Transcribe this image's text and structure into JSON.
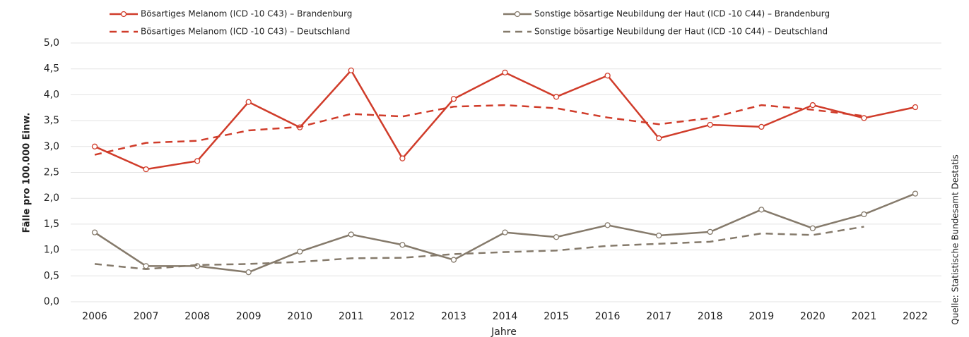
{
  "chart_data": {
    "type": "line",
    "y_label": "Fälle pro 100.000 Einw.",
    "x_label": "Jahre",
    "source": "Quelle: Statistische Bundesamt Destatis",
    "categories": [
      "2006",
      "2007",
      "2008",
      "2009",
      "2010",
      "2011",
      "2012",
      "2013",
      "2014",
      "2015",
      "2016",
      "2017",
      "2018",
      "2019",
      "2020",
      "2021",
      "2022"
    ],
    "series": [
      {
        "name": "Bösartiges Melanom (ICD  -10 C43)  – Brandenburg",
        "color": "#d03c2a",
        "line_style": "solid",
        "markers": true,
        "values": [
          3.0,
          2.56,
          2.72,
          3.86,
          3.37,
          4.47,
          2.77,
          3.92,
          4.43,
          3.96,
          4.37,
          3.16,
          3.42,
          3.38,
          3.8,
          3.55,
          3.76
        ]
      },
      {
        "name": "Bösartiges Melanom (ICD  -10 C43)  – Deutschland",
        "color": "#d03c2a",
        "line_style": "dashed",
        "markers": false,
        "values": [
          2.84,
          3.07,
          3.11,
          3.31,
          3.38,
          3.63,
          3.58,
          3.77,
          3.8,
          3.74,
          3.56,
          3.43,
          3.55,
          3.8,
          3.71,
          3.59,
          null
        ]
      },
      {
        "name": "Sonstige bösartige Neubildung der Haut (ICD  -10 C44)  – Brandenburg",
        "color": "#857a6b",
        "line_style": "solid",
        "markers": true,
        "values": [
          1.34,
          0.69,
          0.69,
          0.57,
          0.97,
          1.3,
          1.1,
          0.81,
          1.34,
          1.25,
          1.48,
          1.28,
          1.35,
          1.78,
          1.42,
          1.69,
          2.09
        ]
      },
      {
        "name": "Sonstige bösartige Neubildung der Haut (ICD  -10 C44)  – Deutschland",
        "color": "#857a6b",
        "line_style": "dashed",
        "markers": false,
        "values": [
          0.73,
          0.63,
          0.71,
          0.73,
          0.77,
          0.84,
          0.85,
          0.92,
          0.96,
          0.99,
          1.08,
          1.12,
          1.16,
          1.32,
          1.29,
          1.45,
          null
        ]
      }
    ],
    "ylim": [
      0,
      5
    ],
    "yticks": [
      {
        "value": 0,
        "label": "0,0"
      },
      {
        "value": 0.5,
        "label": "0,5"
      },
      {
        "value": 1,
        "label": "1,0"
      },
      {
        "value": 1.5,
        "label": "1,5"
      },
      {
        "value": 2,
        "label": "2,0"
      },
      {
        "value": 2.5,
        "label": "2,5"
      },
      {
        "value": 3,
        "label": "3,0"
      },
      {
        "value": 3.5,
        "label": "3,5"
      },
      {
        "value": 4,
        "label": "4,0"
      },
      {
        "value": 4.5,
        "label": "4,5"
      },
      {
        "value": 5,
        "label": "5,0"
      }
    ],
    "grid": true
  }
}
